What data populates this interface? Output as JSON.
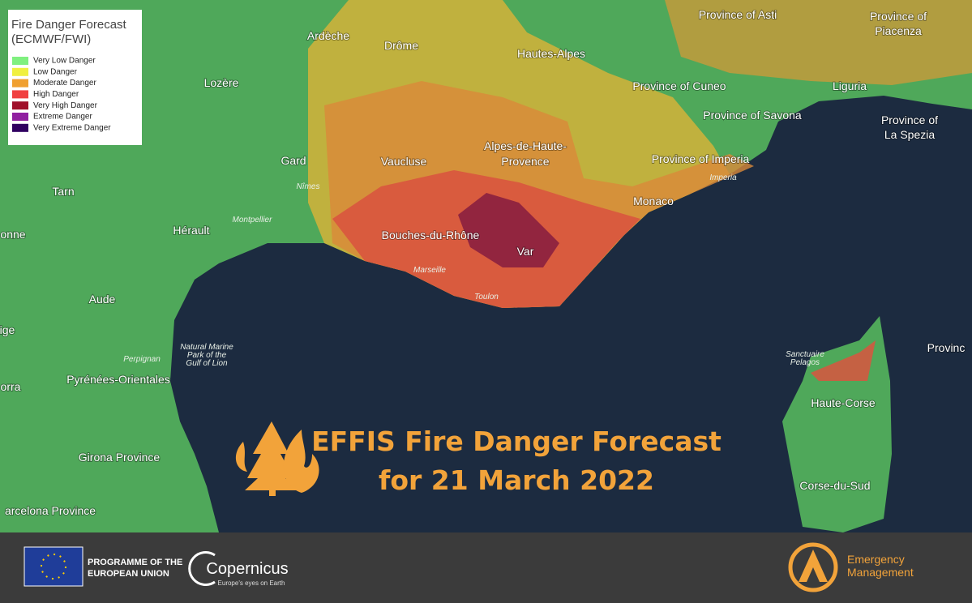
{
  "legend": {
    "title_lines": [
      "Fire Danger Forecast",
      "(ECMWF/FWI)"
    ],
    "items": [
      {
        "label": "Very Low Danger",
        "color": "#80f080"
      },
      {
        "label": "Low Danger",
        "color": "#f0f040"
      },
      {
        "label": "Moderate Danger",
        "color": "#f0a030"
      },
      {
        "label": "High Danger",
        "color": "#f04040"
      },
      {
        "label": "Very High Danger",
        "color": "#a0102a"
      },
      {
        "label": "Extreme Danger",
        "color": "#9020a0"
      },
      {
        "label": "Very Extreme Danger",
        "color": "#300060"
      }
    ]
  },
  "map_labels": [
    "Ardèche",
    "Drôme",
    "Hautes-Alpes",
    "Province of Asti",
    "Province of",
    "Piacenza",
    "Lozère",
    "Province of Cuneo",
    "Liguria",
    "Province of Savona",
    "Province of",
    "La Spezia",
    "Gard",
    "Vaucluse",
    "Alpes-de-Haute-",
    "Provence",
    "Province of Imperia",
    "Tarn",
    "Monaco",
    "Hérault",
    "Bouches-du-Rhône",
    "Var",
    "onne",
    "Aude",
    "Provinc",
    "ige",
    "Haute-Corse",
    "Pyrénées-Orientales",
    "orra",
    "Girona Province",
    "Corse-du-Sud",
    "arcelona Province"
  ],
  "small_labels": [
    "Nîmes",
    "Montpellier",
    "Marseille",
    "Toulon",
    "Imperia",
    "Perpignan",
    "Natural Marine",
    "Park of the",
    "Gulf of Lion",
    "Sanctuaire",
    "Pelagos"
  ],
  "banner": {
    "line1": "EFFIS Fire Danger Forecast",
    "line2": "for 21 March 2022"
  },
  "footer": {
    "eu_lines": [
      "PROGRAMME OF THE",
      "EUROPEAN UNION"
    ],
    "copernicus": "Copernicus",
    "copernicus_tagline": "Europe's eyes on Earth",
    "em_lines": [
      "Emergency",
      "Management"
    ]
  }
}
